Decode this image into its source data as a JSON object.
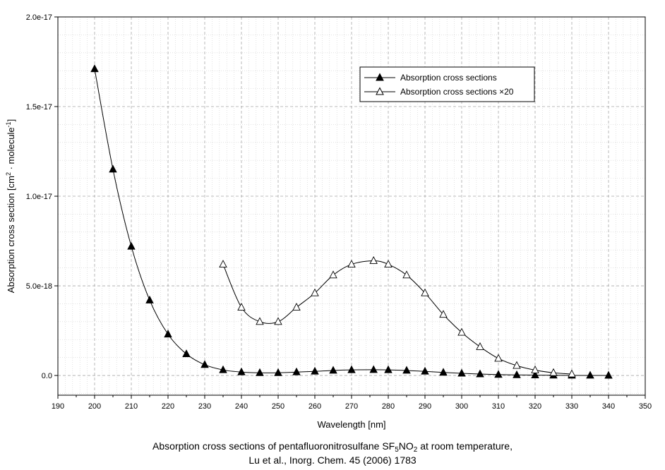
{
  "chart_data": {
    "type": "line",
    "xlabel": "Wavelength [nm]",
    "ylabel": {
      "prefix": "Absorption cross section [cm",
      "exp1": "2",
      "middle": " · molecule",
      "exp2": "-1",
      "suffix": "]"
    },
    "xlim": [
      190,
      350
    ],
    "ylim": [
      -1.1e-18,
      2e-17
    ],
    "xticks": [
      190,
      200,
      210,
      220,
      230,
      240,
      250,
      260,
      270,
      280,
      290,
      300,
      310,
      320,
      330,
      340,
      350
    ],
    "yticks": [
      {
        "value": 0,
        "label": "0.0"
      },
      {
        "value": 5e-18,
        "label": "5.0e-18"
      },
      {
        "value": 1e-17,
        "label": "1.0e-17"
      },
      {
        "value": 1.5e-17,
        "label": "1.5e-17"
      },
      {
        "value": 2e-17,
        "label": "2.0e-17"
      }
    ],
    "grid": true,
    "legend_position": "top-right",
    "series": [
      {
        "name": "Absorption cross sections",
        "marker": "filled-triangle",
        "x": [
          200,
          205,
          210,
          215,
          220,
          225,
          230,
          235,
          240,
          245,
          250,
          255,
          260,
          265,
          270,
          276,
          280,
          285,
          290,
          295,
          300,
          305,
          310,
          315,
          320,
          325,
          330,
          335,
          340
        ],
        "y": [
          1.71e-17,
          1.15e-17,
          7.2e-18,
          4.2e-18,
          2.3e-18,
          1.2e-18,
          6e-19,
          3.1e-19,
          1.9e-19,
          1.5e-19,
          1.5e-19,
          1.9e-19,
          2.3e-19,
          2.8e-19,
          3.1e-19,
          3.2e-19,
          3.1e-19,
          2.8e-19,
          2.3e-19,
          1.7e-19,
          1.2e-19,
          8e-20,
          5e-20,
          3e-20,
          2e-20,
          1e-20,
          5e-21,
          3e-21,
          2e-21
        ]
      },
      {
        "name": "Absorption cross sections ×20",
        "marker": "open-triangle",
        "x": [
          235,
          240,
          245,
          250,
          255,
          260,
          265,
          270,
          276,
          280,
          285,
          290,
          295,
          300,
          305,
          310,
          315,
          320,
          325,
          330
        ],
        "y": [
          6.2e-18,
          3.8e-18,
          3e-18,
          3e-18,
          3.8e-18,
          4.6e-18,
          5.6e-18,
          6.2e-18,
          6.4e-18,
          6.2e-18,
          5.6e-18,
          4.6e-18,
          3.4e-18,
          2.4e-18,
          1.6e-18,
          9.5e-19,
          5.5e-19,
          3e-19,
          1.5e-19,
          8e-20
        ]
      }
    ]
  },
  "caption": {
    "line1_prefix": "Absorption cross sections of pentafluoronitrosulfane SF",
    "line1_sub1": "5",
    "line1_mid": "NO",
    "line1_sub2": "2",
    "line1_suffix": " at room temperature,",
    "line2": "Lu et al., Inorg. Chem. 45 (2006) 1783"
  }
}
